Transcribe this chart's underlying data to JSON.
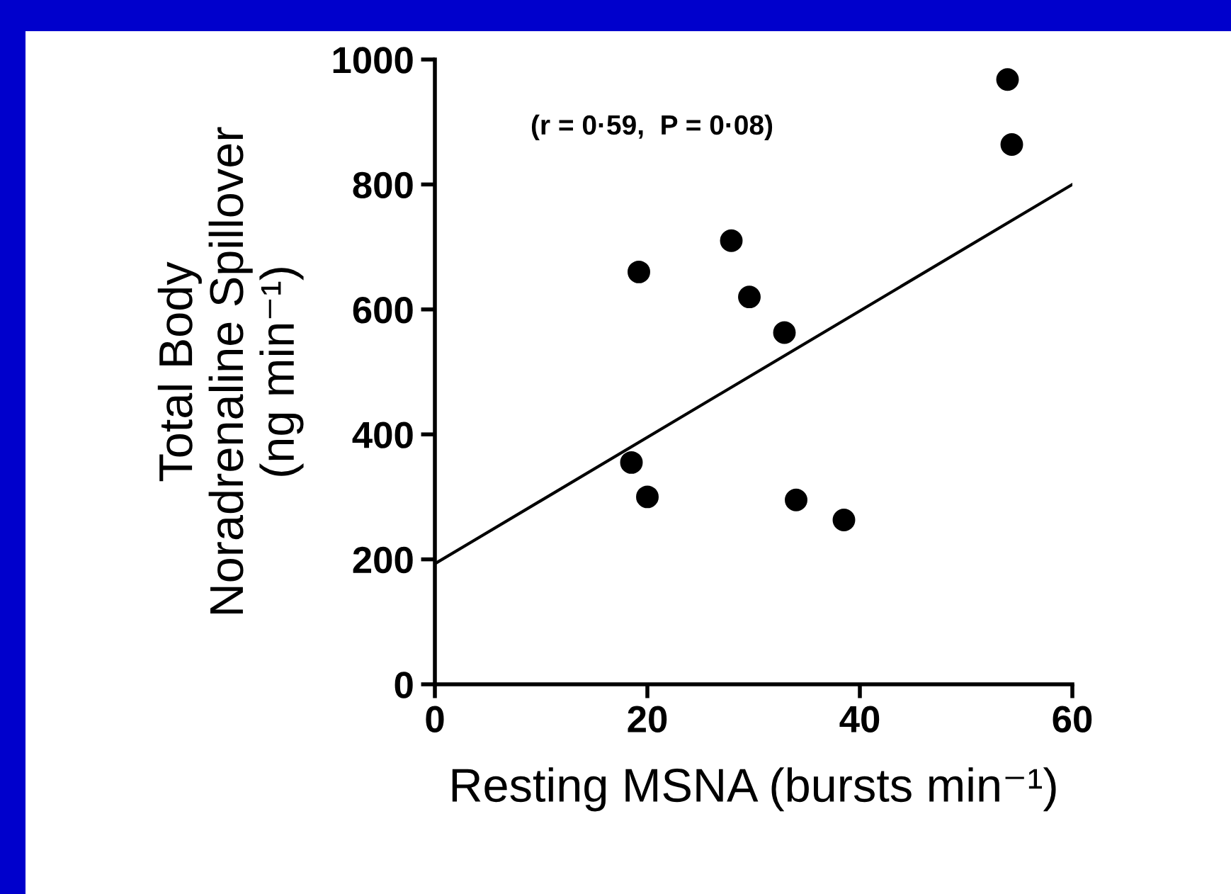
{
  "chart_data": {
    "type": "scatter",
    "xlabel": "Resting MSNA (bursts min⁻¹)",
    "ylabel": "Total Body\nNoradrenaline Spillover\n(ng min⁻¹)",
    "annotations": [
      "(r = 0·59,  P = 0·08)"
    ],
    "series": [
      {
        "color": "#000000",
        "marker": "circle",
        "x": [
          18.5,
          19.2,
          20,
          27.9,
          29.6,
          32.9,
          34,
          38.5,
          53.9,
          54.3
        ],
        "values": [
          355,
          660,
          300,
          710,
          620,
          563,
          295,
          263,
          968,
          864
        ]
      },
      {
        "type": "line",
        "color": "#000000",
        "marker": "none",
        "line_style": "solid",
        "x": [
          0,
          60
        ],
        "values": [
          193,
          800
        ]
      }
    ],
    "xlim": [
      0,
      60
    ],
    "xticks": [
      0,
      20,
      40,
      60
    ],
    "ylim": [
      0,
      1000
    ],
    "yticks": [
      0,
      200,
      400,
      600,
      800,
      1000
    ],
    "grid": false,
    "legend": false
  }
}
